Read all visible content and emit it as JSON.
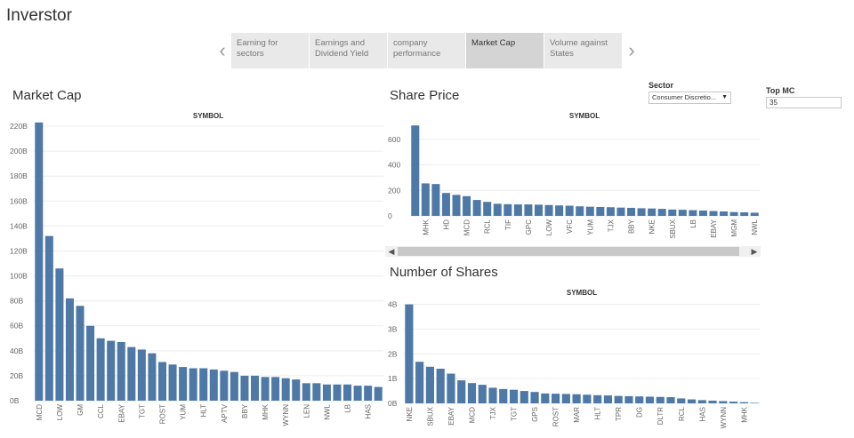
{
  "app_title": "Inverstor",
  "story_tabs": [
    {
      "label": "Earning for sectors",
      "active": false
    },
    {
      "label": "Earnings and Dividend Yield",
      "active": false
    },
    {
      "label": "company performance",
      "active": false
    },
    {
      "label": "Market Cap",
      "active": true
    },
    {
      "label": "Volume against States",
      "active": false
    }
  ],
  "filters": {
    "sector_label": "Sector",
    "sector_value": "Consumer Discretio...",
    "topmc_label": "Top MC",
    "topmc_value": "35"
  },
  "colors": {
    "bar": "#4e79a7",
    "grid": "#ececec",
    "axis_text": "#666666"
  },
  "chart_data": [
    {
      "type": "bar",
      "title": "Market Cap",
      "xlabel": "SYMBOL",
      "ylabel": "",
      "ylim": [
        0,
        230
      ],
      "yticks": [
        0,
        20,
        40,
        60,
        80,
        100,
        120,
        140,
        160,
        180,
        200,
        220
      ],
      "ytick_labels": [
        "0B",
        "20B",
        "40B",
        "60B",
        "80B",
        "100B",
        "120B",
        "140B",
        "160B",
        "180B",
        "200B",
        "220B"
      ],
      "value_unit": "B",
      "categories": [
        "MCD",
        "",
        "LOW",
        "",
        "GM",
        "",
        "CCL",
        "",
        "EBAY",
        "",
        "TGT",
        "",
        "ROST",
        "",
        "YUM",
        "",
        "HLT",
        "",
        "APTV",
        "",
        "BBY",
        "",
        "MHK",
        "",
        "WYNN",
        "",
        "LEN",
        "",
        "NWL",
        "",
        "LB",
        "",
        "HAS",
        ""
      ],
      "values": [
        223,
        132,
        106,
        82,
        76,
        60,
        50,
        48,
        47,
        43,
        41,
        38,
        31,
        29,
        27,
        26,
        26,
        25,
        24,
        23,
        20,
        20,
        19,
        19,
        18,
        17,
        14,
        14,
        13,
        13,
        13,
        12,
        12,
        11
      ]
    },
    {
      "type": "bar",
      "title": "Share Price",
      "xlabel": "SYMBOL",
      "ylabel": "",
      "ylim": [
        0,
        760
      ],
      "yticks": [
        0,
        200,
        400,
        600
      ],
      "ytick_labels": [
        "0",
        "200",
        "400",
        "600"
      ],
      "categories": [
        "",
        "MHK",
        "",
        "HD",
        "",
        "MCD",
        "",
        "RCL",
        "",
        "TIF",
        "",
        "GPC",
        "",
        "LOW",
        "",
        "VFC",
        "",
        "YUM",
        "",
        "TJX",
        "",
        "BBY",
        "",
        "NKE",
        "",
        "SBUX",
        "",
        "LB",
        "",
        "EBAY",
        "",
        "MGM",
        "",
        "NWL"
      ],
      "values": [
        710,
        255,
        250,
        180,
        165,
        155,
        125,
        110,
        95,
        92,
        90,
        90,
        88,
        85,
        82,
        80,
        75,
        72,
        70,
        68,
        65,
        63,
        60,
        58,
        55,
        50,
        48,
        45,
        42,
        38,
        35,
        30,
        28,
        25
      ]
    },
    {
      "type": "bar",
      "title": "Number of Shares",
      "xlabel": "SYMBOL",
      "ylabel": "",
      "ylim": [
        0,
        4.2
      ],
      "yticks": [
        0,
        1,
        2,
        3,
        4
      ],
      "ytick_labels": [
        "0B",
        "1B",
        "2B",
        "3B",
        "4B"
      ],
      "value_unit": "B",
      "categories": [
        "NKE",
        "",
        "SBUX",
        "",
        "EBAY",
        "",
        "MCD",
        "",
        "TJX",
        "",
        "TGT",
        "",
        "GPS",
        "",
        "ROST",
        "",
        "MAR",
        "",
        "HLT",
        "",
        "TPR",
        "",
        "DG",
        "",
        "DLTR",
        "",
        "RCL",
        "",
        "HAS",
        "",
        "WYNN",
        "",
        "MHK",
        ""
      ],
      "values": [
        4.0,
        1.68,
        1.48,
        1.4,
        1.2,
        0.93,
        0.82,
        0.75,
        0.63,
        0.58,
        0.55,
        0.5,
        0.46,
        0.4,
        0.39,
        0.38,
        0.37,
        0.35,
        0.33,
        0.32,
        0.3,
        0.29,
        0.28,
        0.27,
        0.26,
        0.25,
        0.2,
        0.16,
        0.13,
        0.11,
        0.09,
        0.07,
        0.05,
        0.02
      ]
    }
  ]
}
